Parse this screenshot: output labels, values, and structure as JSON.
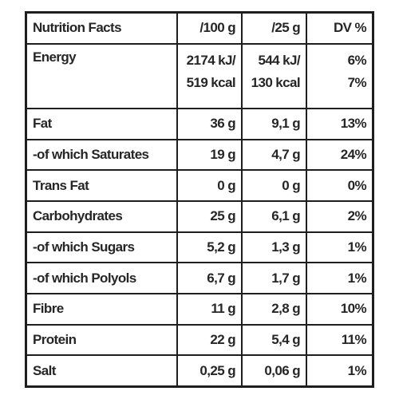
{
  "header": {
    "title": "Nutrition Facts",
    "col_100g": "/100 g",
    "col_25g": "/25 g",
    "col_dv": "DV %"
  },
  "energy": {
    "label": "Energy",
    "per100_kj": "2174 kJ/",
    "per100_kcal": "519 kcal",
    "per25_kj": "544 kJ/",
    "per25_kcal": "130 kcal",
    "dv_kj": "6%",
    "dv_kcal": "7%"
  },
  "rows": [
    {
      "label": "Fat",
      "per100": "36 g",
      "per25": "9,1 g",
      "dv": "13%"
    },
    {
      "label": "-of which Saturates",
      "per100": "19 g",
      "per25": "4,7 g",
      "dv": "24%"
    },
    {
      "label": "Trans Fat",
      "per100": "0 g",
      "per25": "0 g",
      "dv": "0%"
    },
    {
      "label": "Carbohydrates",
      "per100": "25 g",
      "per25": "6,1 g",
      "dv": "2%"
    },
    {
      "label": "-of which Sugars",
      "per100": "5,2 g",
      "per25": "1,3 g",
      "dv": "1%"
    },
    {
      "label": "-of which Polyols",
      "per100": "6,7 g",
      "per25": "1,7 g",
      "dv": "1%"
    },
    {
      "label": "Fibre",
      "per100": "11 g",
      "per25": "2,8 g",
      "dv": "10%"
    },
    {
      "label": "Protein",
      "per100": "22 g",
      "per25": "5,4 g",
      "dv": "11%"
    },
    {
      "label": "Salt",
      "per100": "0,25 g",
      "per25": "0,06 g",
      "dv": "1%"
    }
  ]
}
